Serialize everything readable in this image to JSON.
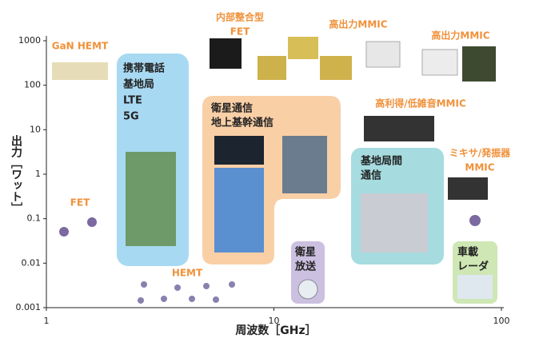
{
  "axes": {
    "xlabel": "周波数［GHz］",
    "ylabel": "出力［ワット］",
    "xticks": [
      1,
      10,
      100
    ],
    "yticks": [
      0.001,
      0.01,
      0.1,
      1,
      10,
      100,
      1000
    ],
    "xlim": [
      1,
      100
    ],
    "ylim": [
      0.001,
      1000
    ]
  },
  "regions": [
    {
      "lines": [
        "携帯電話",
        "基地局",
        "LTE",
        "5G"
      ]
    },
    {
      "lines": [
        "衛星通信",
        "地上基幹通信"
      ]
    },
    {
      "lines": [
        "衛星",
        "放送"
      ]
    },
    {
      "lines": [
        "基地局間",
        "通信"
      ]
    },
    {
      "lines": [
        "車載",
        "レーダ"
      ]
    }
  ],
  "devices": [
    {
      "lines": [
        "GaN HEMT"
      ]
    },
    {
      "lines": [
        "FET"
      ]
    },
    {
      "lines": [
        "HEMT"
      ]
    },
    {
      "lines": [
        "内部整合型",
        "FET"
      ]
    },
    {
      "lines": [
        "高出力MMIC"
      ]
    },
    {
      "lines": [
        "高出力MMIC"
      ]
    },
    {
      "lines": [
        "高利得/低雑音MMIC"
      ]
    },
    {
      "lines": [
        "ミキサ/発振器",
        "MMIC"
      ]
    }
  ]
}
